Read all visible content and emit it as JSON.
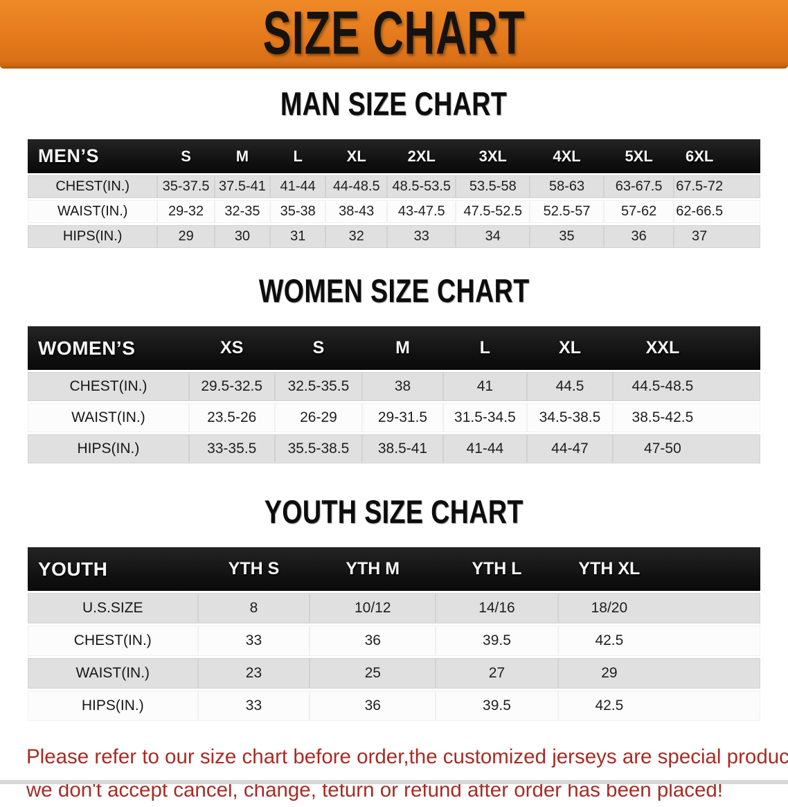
{
  "banner": {
    "title": "SIZE CHART",
    "bg_color": "#e57a1d",
    "text_color": "#151310"
  },
  "sections": [
    {
      "heading": "MAN SIZE CHART",
      "table": {
        "corner_label": "MEN’S",
        "columns": [
          "S",
          "M",
          "L",
          "XL",
          "2XL",
          "3XL",
          "4XL",
          "5XL",
          "6XL"
        ],
        "rows": [
          {
            "label": "CHEST(IN.)",
            "values": [
              "35-37.5",
              "37.5-41",
              "41-44",
              "44-48.5",
              "48.5-53.5",
              "53.5-58",
              "58-63",
              "63-67.5",
              "67.5-72"
            ]
          },
          {
            "label": "WAIST(IN.)",
            "values": [
              "29-32",
              "32-35",
              "35-38",
              "38-43",
              "43-47.5",
              "47.5-52.5",
              "52.5-57",
              "57-62",
              "62-66.5"
            ]
          },
          {
            "label": "HIPS(IN.)",
            "values": [
              "29",
              "30",
              "31",
              "32",
              "33",
              "34",
              "35",
              "36",
              "37"
            ]
          }
        ]
      }
    },
    {
      "heading": "WOMEN SIZE CHART",
      "table": {
        "corner_label": "WOMEN’S",
        "columns": [
          "XS",
          "S",
          "M",
          "L",
          "XL",
          "XXL"
        ],
        "rows": [
          {
            "label": "CHEST(IN.)",
            "values": [
              "29.5-32.5",
              "32.5-35.5",
              "38",
              "41",
              "44.5",
              "44.5-48.5"
            ]
          },
          {
            "label": "WAIST(IN.)",
            "values": [
              "23.5-26",
              "26-29",
              "29-31.5",
              "31.5-34.5",
              "34.5-38.5",
              "38.5-42.5"
            ]
          },
          {
            "label": "HIPS(IN.)",
            "values": [
              "33-35.5",
              "35.5-38.5",
              "38.5-41",
              "41-44",
              "44-47",
              "47-50"
            ]
          }
        ]
      }
    },
    {
      "heading": "YOUTH SIZE CHART",
      "table": {
        "corner_label": "YOUTH",
        "columns": [
          "YTH S",
          "YTH M",
          "YTH L",
          "YTH XL"
        ],
        "rows": [
          {
            "label": "U.S.SIZE",
            "values": [
              "8",
              "10/12",
              "14/16",
              "18/20"
            ]
          },
          {
            "label": "CHEST(IN.)",
            "values": [
              "33",
              "36",
              "39.5",
              "42.5"
            ]
          },
          {
            "label": "WAIST(IN.)",
            "values": [
              "23",
              "25",
              "27",
              "29"
            ]
          },
          {
            "label": "HIPS(IN.)",
            "values": [
              "33",
              "36",
              "39.5",
              "42.5"
            ]
          }
        ]
      }
    }
  ],
  "table_colors": {
    "header_bg": "#141414",
    "header_text": "#f5f5f5",
    "row_gray": "#e0e0e0",
    "row_white": "#fcfcfc"
  },
  "disclaimer": {
    "line1": "Please refer to our size chart before order,the customized jerseys are special products,",
    "line2": "we don't accept cancel, change, teturn or refund after order has been placed!",
    "color": "#a92b24"
  }
}
